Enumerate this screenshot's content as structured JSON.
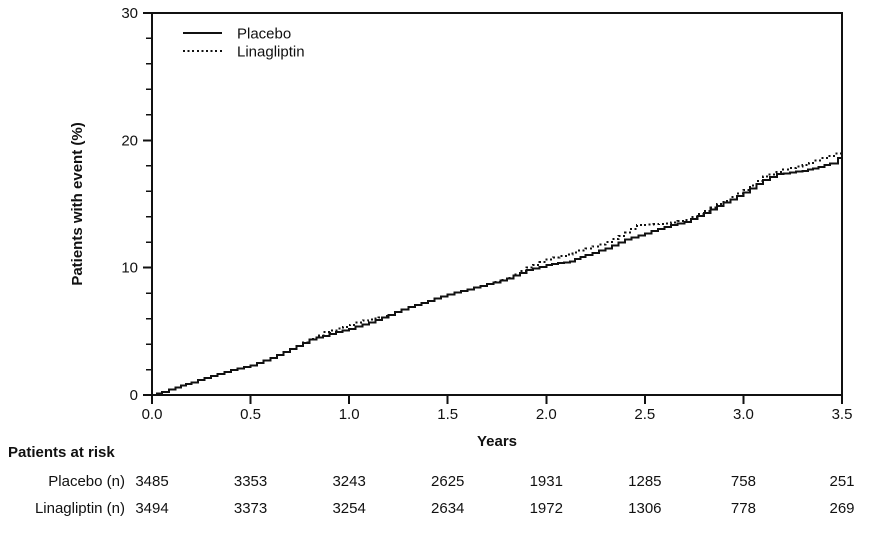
{
  "chart_data": {
    "type": "line",
    "subtype": "kaplan-meier-step",
    "title": "",
    "xlabel": "Years",
    "ylabel": "Patients with event (%)",
    "xlim": [
      0,
      3.5
    ],
    "ylim": [
      0,
      30
    ],
    "x_ticks": [
      0,
      0.5,
      1,
      1.5,
      2,
      2.5,
      3,
      3.5
    ],
    "x_tick_labels": [
      "0.0",
      "0.5",
      "1.0",
      "1.5",
      "2.0",
      "2.5",
      "3.0",
      "3.5"
    ],
    "y_major_ticks": [
      0,
      10,
      20,
      30
    ],
    "y_minor_step": 2,
    "grid": false,
    "legend_position": "top-left-inside",
    "series": [
      {
        "name": "Placebo",
        "style": "solid",
        "color": "#111111",
        "points": [
          [
            0,
            0
          ],
          [
            0.05,
            0.25
          ],
          [
            0.12,
            0.6
          ],
          [
            0.2,
            1.0
          ],
          [
            0.3,
            1.5
          ],
          [
            0.4,
            1.95
          ],
          [
            0.5,
            2.3
          ],
          [
            0.6,
            2.9
          ],
          [
            0.7,
            3.6
          ],
          [
            0.8,
            4.35
          ],
          [
            0.9,
            4.8
          ],
          [
            1.0,
            5.2
          ],
          [
            1.1,
            5.7
          ],
          [
            1.2,
            6.3
          ],
          [
            1.3,
            6.9
          ],
          [
            1.4,
            7.4
          ],
          [
            1.5,
            7.9
          ],
          [
            1.6,
            8.3
          ],
          [
            1.7,
            8.7
          ],
          [
            1.8,
            9.15
          ],
          [
            1.9,
            9.8
          ],
          [
            2.0,
            10.2
          ],
          [
            2.12,
            10.5
          ],
          [
            2.2,
            11.0
          ],
          [
            2.3,
            11.5
          ],
          [
            2.4,
            12.2
          ],
          [
            2.5,
            12.7
          ],
          [
            2.6,
            13.2
          ],
          [
            2.7,
            13.6
          ],
          [
            2.8,
            14.3
          ],
          [
            2.9,
            15.1
          ],
          [
            3.0,
            15.9
          ],
          [
            3.1,
            16.9
          ],
          [
            3.17,
            17.35
          ],
          [
            3.3,
            17.6
          ],
          [
            3.38,
            17.9
          ],
          [
            3.44,
            18.2
          ],
          [
            3.48,
            18.6
          ],
          [
            3.5,
            18.7
          ]
        ]
      },
      {
        "name": "Linagliptin",
        "style": "dotted",
        "color": "#111111",
        "points": [
          [
            0,
            0
          ],
          [
            0.05,
            0.25
          ],
          [
            0.12,
            0.6
          ],
          [
            0.2,
            1.0
          ],
          [
            0.3,
            1.5
          ],
          [
            0.4,
            1.95
          ],
          [
            0.5,
            2.3
          ],
          [
            0.6,
            2.9
          ],
          [
            0.7,
            3.6
          ],
          [
            0.8,
            4.4
          ],
          [
            0.87,
            4.95
          ],
          [
            0.97,
            5.35
          ],
          [
            1.07,
            5.85
          ],
          [
            1.15,
            6.1
          ],
          [
            1.2,
            6.3
          ],
          [
            1.3,
            6.9
          ],
          [
            1.4,
            7.4
          ],
          [
            1.5,
            7.9
          ],
          [
            1.6,
            8.3
          ],
          [
            1.7,
            8.7
          ],
          [
            1.8,
            9.2
          ],
          [
            1.9,
            10.0
          ],
          [
            2.0,
            10.65
          ],
          [
            2.1,
            11.05
          ],
          [
            2.2,
            11.5
          ],
          [
            2.3,
            12.0
          ],
          [
            2.4,
            12.75
          ],
          [
            2.46,
            13.35
          ],
          [
            2.6,
            13.45
          ],
          [
            2.7,
            13.75
          ],
          [
            2.8,
            14.45
          ],
          [
            2.9,
            15.25
          ],
          [
            3.0,
            16.1
          ],
          [
            3.1,
            17.15
          ],
          [
            3.2,
            17.7
          ],
          [
            3.3,
            18.05
          ],
          [
            3.4,
            18.6
          ],
          [
            3.46,
            18.95
          ],
          [
            3.5,
            19.2
          ]
        ]
      }
    ]
  },
  "risk_table": {
    "title": "Patients at risk",
    "rows": [
      {
        "label": "Placebo (n)",
        "values": [
          "3485",
          "3353",
          "3243",
          "2625",
          "1931",
          "1285",
          "758",
          "251"
        ]
      },
      {
        "label": "Linagliptin (n)",
        "values": [
          "3494",
          "3373",
          "3254",
          "2634",
          "1972",
          "1306",
          "778",
          "269"
        ]
      }
    ]
  },
  "colors": {
    "line": "#111111",
    "text": "#111111",
    "background": "#ffffff"
  }
}
